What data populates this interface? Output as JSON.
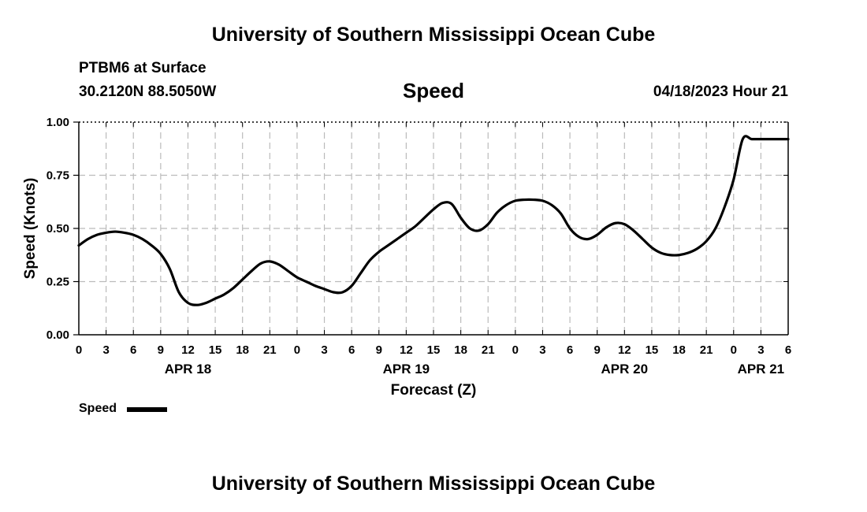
{
  "header": {
    "title_top": "University of Southern Mississippi Ocean Cube",
    "station": "PTBM6 at Surface",
    "coords": "30.2120N  88.5050W",
    "variable": "Speed",
    "datetime": "04/18/2023 Hour 21"
  },
  "footer": {
    "title_bottom": "University of Southern Mississippi Ocean Cube"
  },
  "legend": {
    "label": "Speed",
    "color": "#000000"
  },
  "chart_data": {
    "type": "line",
    "title": "Speed",
    "xlabel": "Forecast (Z)",
    "ylabel": "Speed (Knots)",
    "xlim": [
      0,
      78
    ],
    "ylim": [
      0,
      1.0
    ],
    "grid": true,
    "x_ticks": [
      0,
      3,
      6,
      9,
      12,
      15,
      18,
      21,
      24,
      27,
      30,
      33,
      36,
      39,
      42,
      45,
      48,
      51,
      54,
      57,
      60,
      63,
      66,
      69,
      72,
      75,
      78
    ],
    "x_tick_labels": [
      "0",
      "3",
      "6",
      "9",
      "12",
      "15",
      "18",
      "21",
      "0",
      "3",
      "6",
      "9",
      "12",
      "15",
      "18",
      "21",
      "0",
      "3",
      "6",
      "9",
      "12",
      "15",
      "18",
      "21",
      "0",
      "3",
      "6"
    ],
    "date_labels": [
      {
        "x": 12,
        "label": "APR 18"
      },
      {
        "x": 36,
        "label": "APR 19"
      },
      {
        "x": 60,
        "label": "APR 20"
      },
      {
        "x": 75,
        "label": "APR 21"
      }
    ],
    "y_ticks": [
      0.0,
      0.25,
      0.5,
      0.75,
      1.0
    ],
    "y_tick_labels": [
      "0.00",
      "0.25",
      "0.50",
      "0.75",
      "1.00"
    ],
    "series": [
      {
        "name": "Speed",
        "x": [
          0,
          1,
          2,
          3,
          4,
          5,
          6,
          7,
          8,
          9,
          10,
          11,
          12,
          13,
          14,
          15,
          16,
          17,
          18,
          19,
          20,
          21,
          22,
          23,
          24,
          25,
          26,
          27,
          28,
          29,
          30,
          31,
          32,
          33,
          34,
          35,
          36,
          37,
          38,
          39,
          40,
          41,
          42,
          43,
          44,
          45,
          46,
          47,
          48,
          49,
          50,
          51,
          52,
          53,
          54,
          55,
          56,
          57,
          58,
          59,
          60,
          61,
          62,
          63,
          64,
          65,
          66,
          67,
          68,
          69,
          70,
          71,
          72,
          73,
          74,
          75,
          76,
          77,
          78
        ],
        "values": [
          0.42,
          0.45,
          0.47,
          0.48,
          0.485,
          0.48,
          0.47,
          0.45,
          0.42,
          0.38,
          0.31,
          0.2,
          0.15,
          0.14,
          0.15,
          0.17,
          0.19,
          0.22,
          0.26,
          0.3,
          0.335,
          0.345,
          0.33,
          0.3,
          0.27,
          0.25,
          0.23,
          0.215,
          0.2,
          0.2,
          0.23,
          0.29,
          0.35,
          0.39,
          0.42,
          0.45,
          0.48,
          0.51,
          0.55,
          0.59,
          0.62,
          0.615,
          0.55,
          0.5,
          0.49,
          0.52,
          0.575,
          0.61,
          0.63,
          0.635,
          0.635,
          0.63,
          0.61,
          0.57,
          0.5,
          0.46,
          0.45,
          0.47,
          0.505,
          0.525,
          0.52,
          0.49,
          0.45,
          0.41,
          0.385,
          0.375,
          0.375,
          0.385,
          0.405,
          0.44,
          0.5,
          0.6,
          0.73,
          0.92,
          0.92,
          0.92,
          0.92,
          0.92,
          0.92
        ],
        "color": "#000000"
      }
    ]
  }
}
